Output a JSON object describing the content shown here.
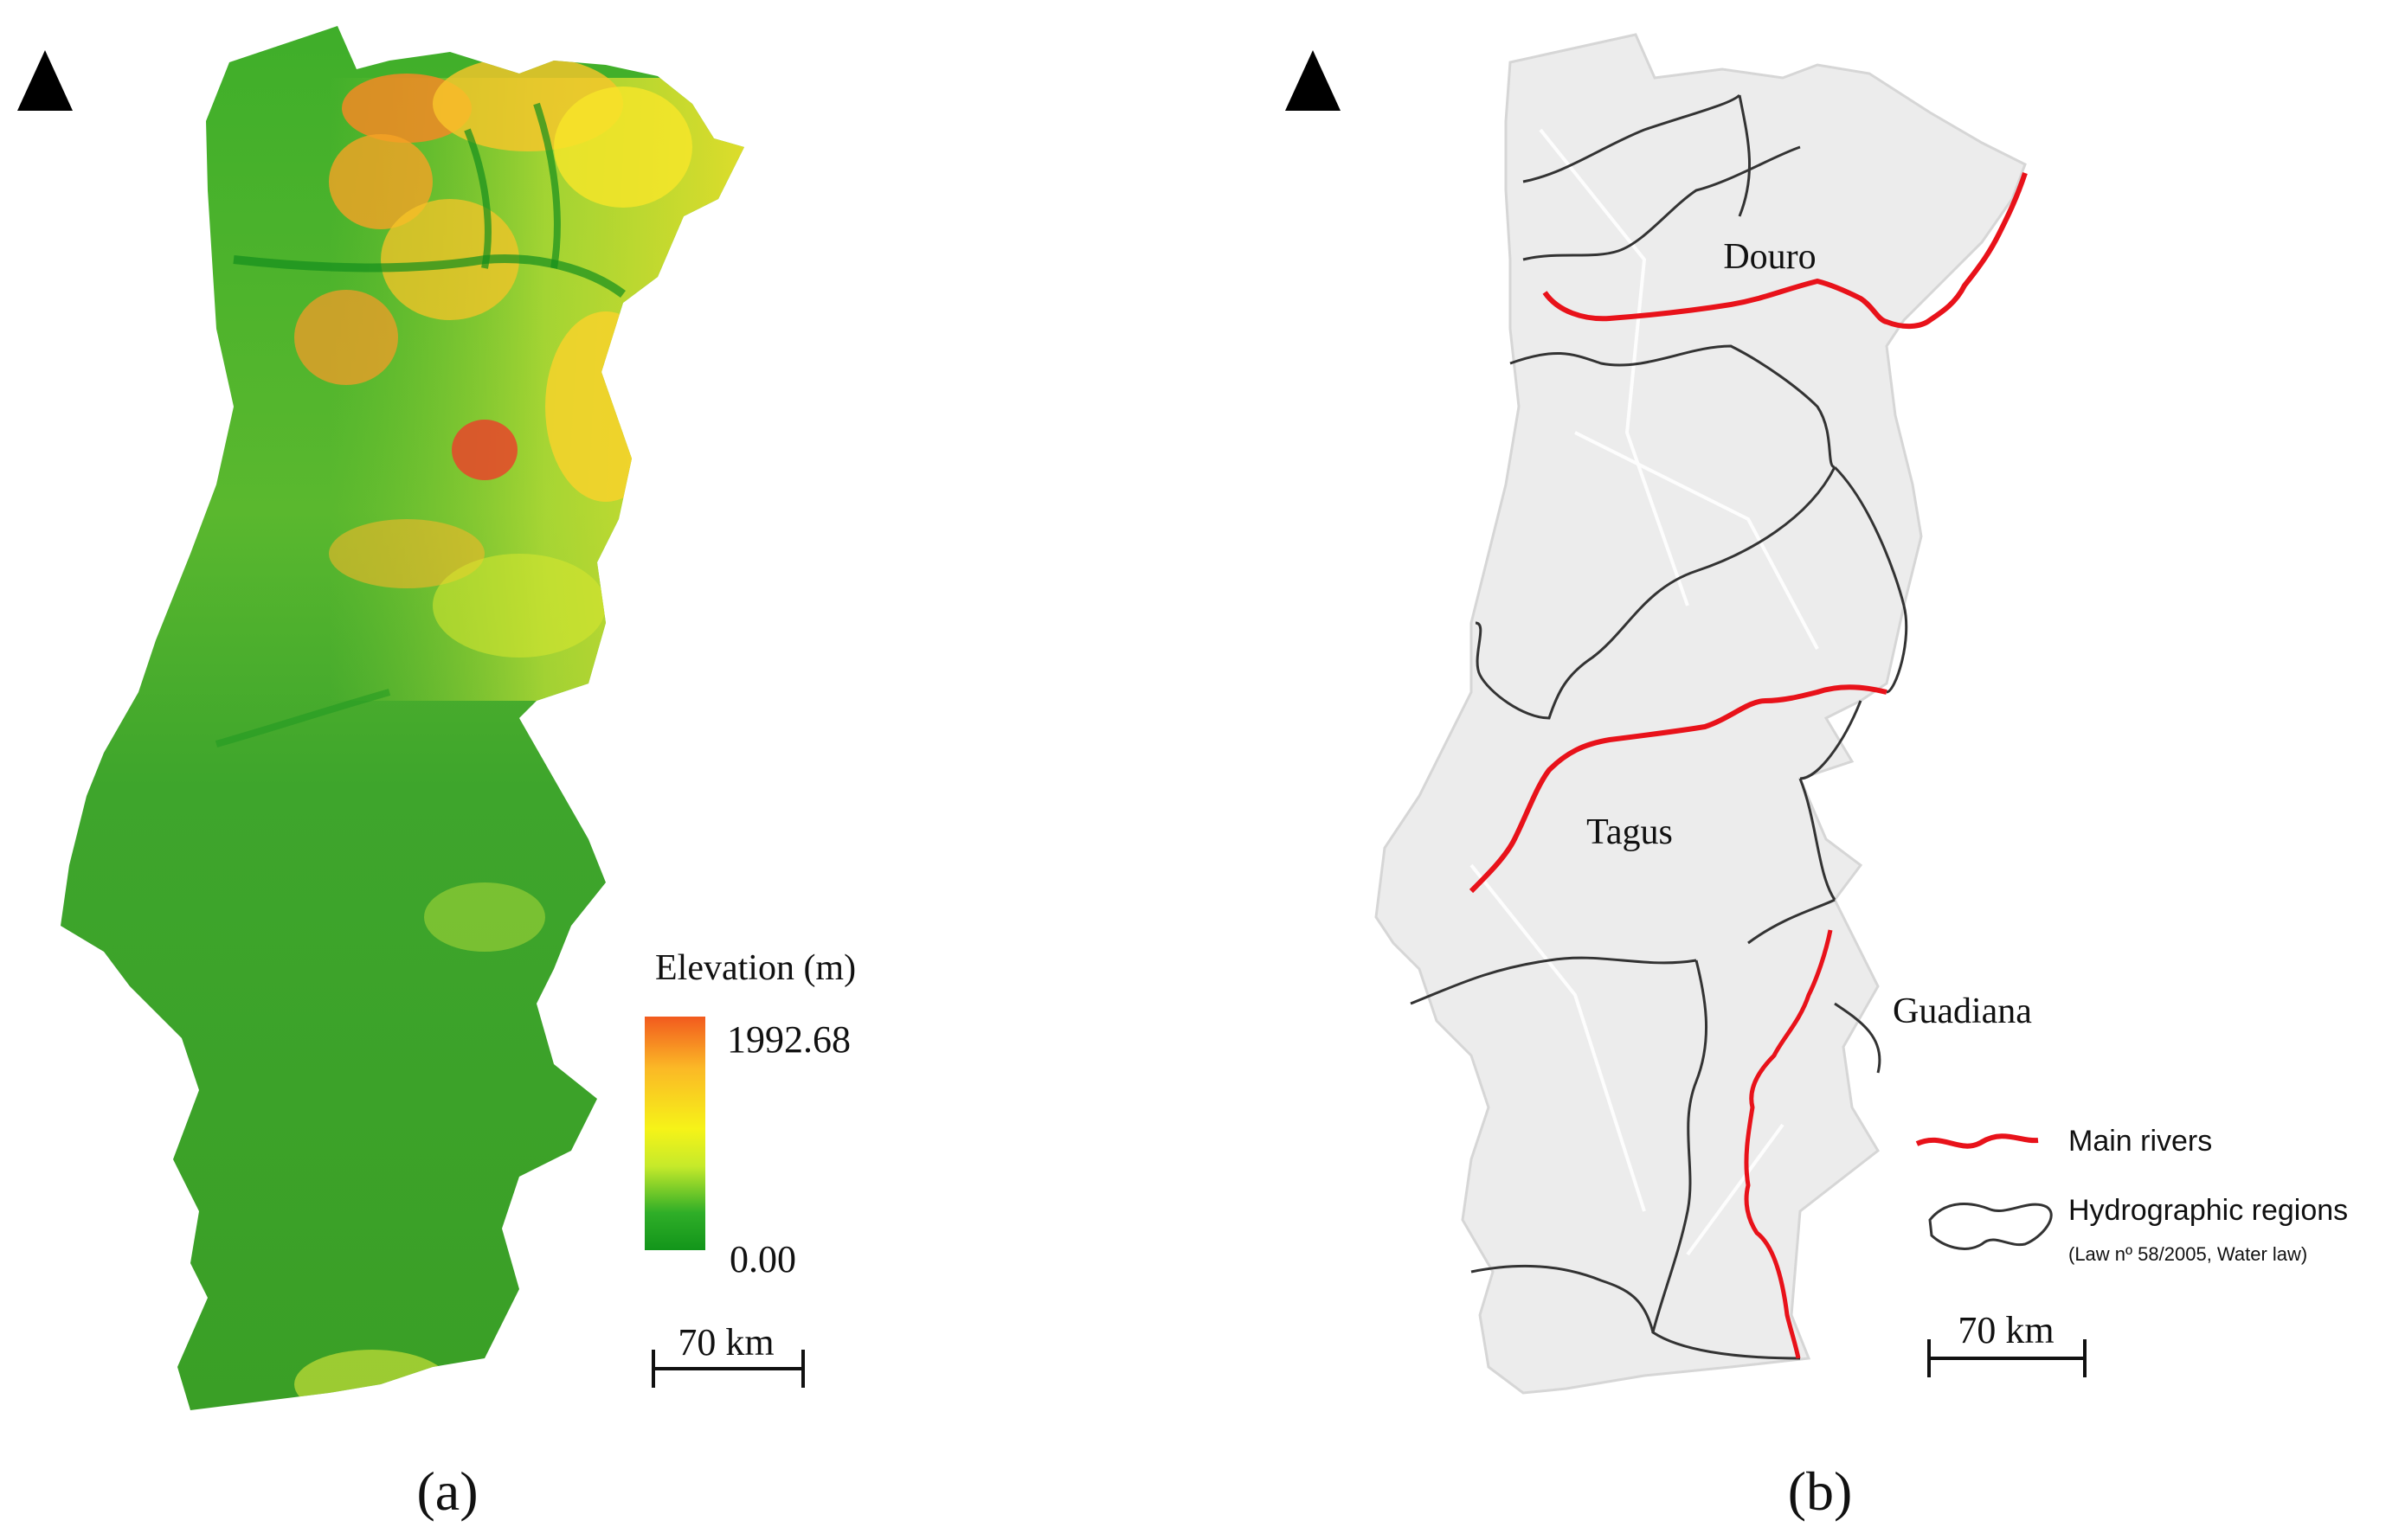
{
  "panel_a": {
    "legend": {
      "title": "Elevation (m)",
      "max_label": "1992.68",
      "min_label": "0.00",
      "colors": [
        "#f25a1e",
        "#fbb826",
        "#f6f318",
        "#c6ea2a",
        "#2fae28",
        "#12951a"
      ]
    },
    "scale_bar": {
      "label": "70 km"
    },
    "caption": "(a)",
    "icons": {
      "north_arrow": "north-arrow-icon"
    }
  },
  "panel_b": {
    "rivers": [
      {
        "label": "Douro"
      },
      {
        "label": "Tagus"
      },
      {
        "label": "Guadiana"
      }
    ],
    "legend": {
      "main_rivers_label": "Main rivers",
      "regions_label": "Hydrographic regions",
      "regions_note": "(Law nº 58/2005, Water law)",
      "river_color": "#e8121a",
      "region_color": "#333333"
    },
    "scale_bar": {
      "label": "70 km"
    },
    "caption": "(b)",
    "icons": {
      "north_arrow": "north-arrow-icon"
    }
  }
}
